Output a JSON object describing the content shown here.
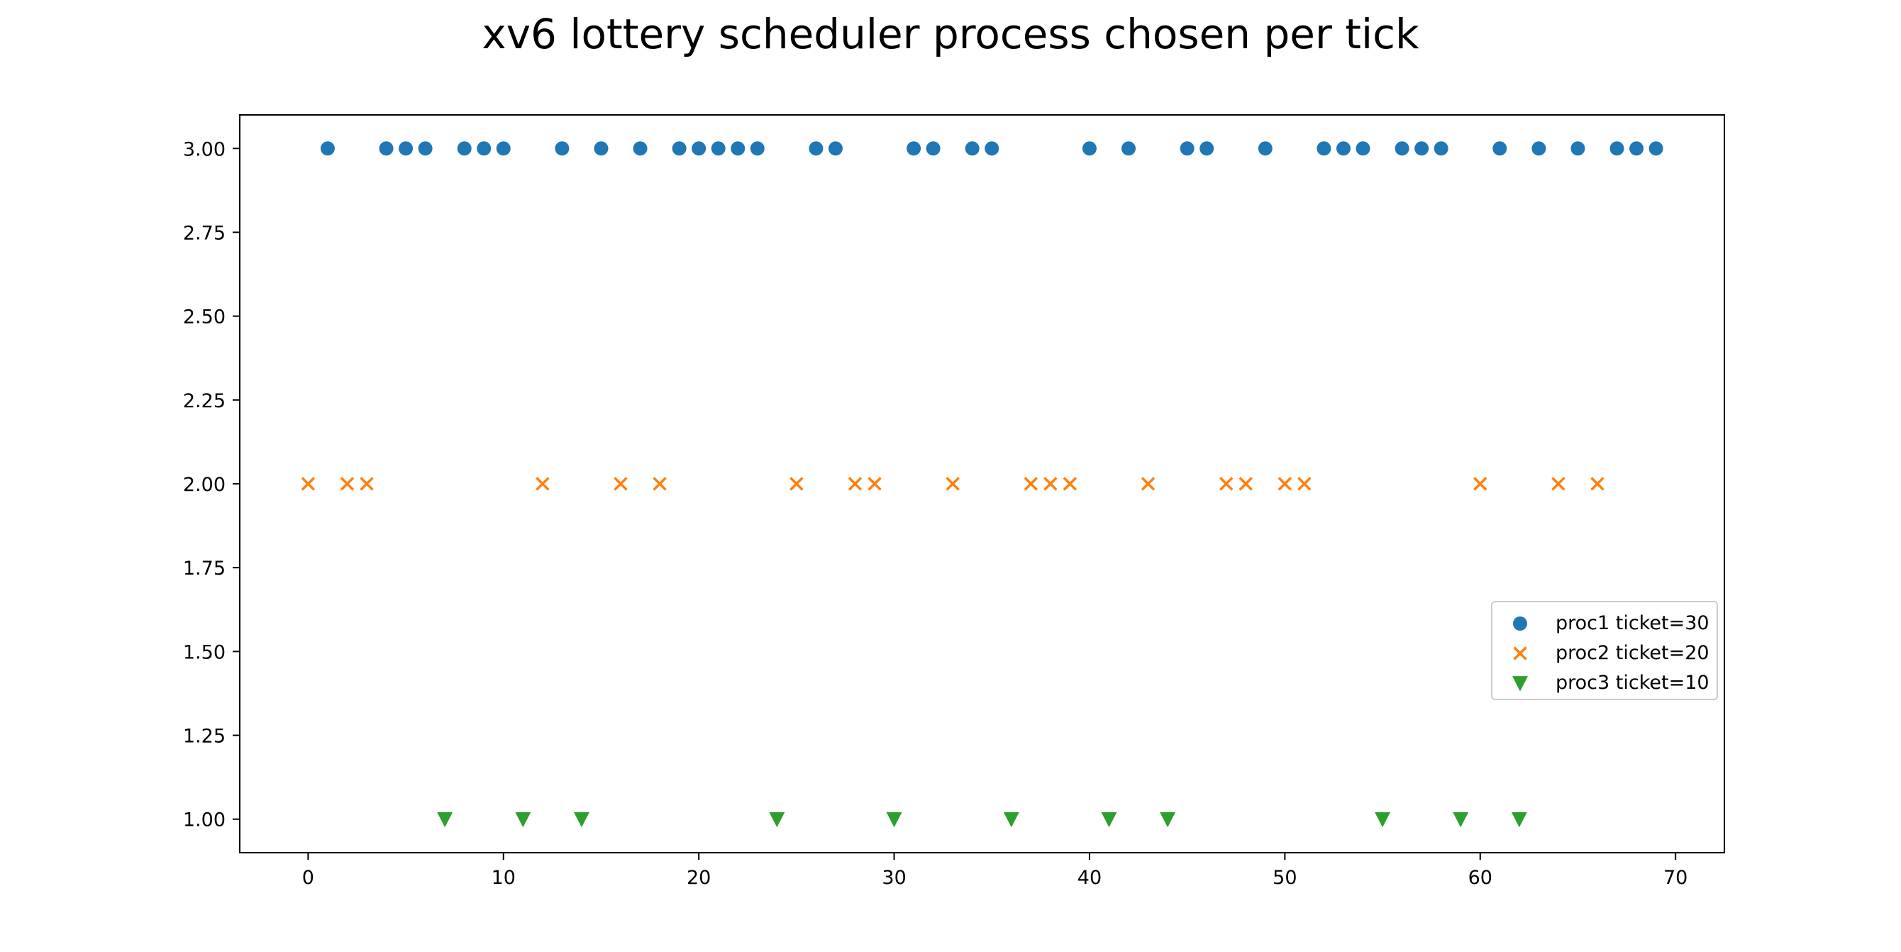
{
  "chart_data": {
    "type": "scatter",
    "title": "xv6 lottery scheduler process chosen per tick",
    "xlabel": "",
    "ylabel": "",
    "xlim": [
      -3.5,
      72.5
    ],
    "ylim": [
      0.9,
      3.1
    ],
    "xticks": [
      0,
      10,
      20,
      30,
      40,
      50,
      60,
      70
    ],
    "yticks": [
      1.0,
      1.25,
      1.5,
      1.75,
      2.0,
      2.25,
      2.5,
      2.75,
      3.0
    ],
    "ytick_labels": [
      "1.00",
      "1.25",
      "1.50",
      "1.75",
      "2.00",
      "2.25",
      "2.50",
      "2.75",
      "3.00"
    ],
    "grid": false,
    "legend_position": "center-right",
    "series": [
      {
        "name": "proc1 ticket=30",
        "marker": "circle",
        "color": "#1f77b4",
        "y": 3,
        "x": [
          1,
          4,
          5,
          6,
          8,
          9,
          10,
          13,
          15,
          17,
          19,
          20,
          21,
          22,
          23,
          26,
          27,
          31,
          32,
          34,
          35,
          40,
          42,
          45,
          46,
          49,
          52,
          53,
          54,
          56,
          57,
          58,
          61,
          63,
          65,
          67,
          68,
          69
        ]
      },
      {
        "name": "proc2 ticket=20",
        "marker": "x",
        "color": "#ff7f0e",
        "y": 2,
        "x": [
          0,
          2,
          3,
          12,
          16,
          18,
          25,
          28,
          29,
          33,
          37,
          38,
          39,
          43,
          47,
          48,
          50,
          51,
          60,
          64,
          66
        ]
      },
      {
        "name": "proc3 ticket=10",
        "marker": "triangle-down",
        "color": "#2ca02c",
        "y": 1,
        "x": [
          7,
          11,
          14,
          24,
          30,
          36,
          41,
          44,
          55,
          59,
          62
        ]
      }
    ]
  }
}
